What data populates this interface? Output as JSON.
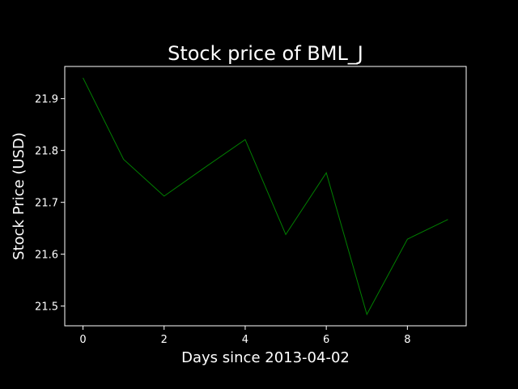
{
  "chart_data": {
    "type": "line",
    "title": "Stock price of BML_J",
    "xlabel": "Days since 2013-04-02",
    "ylabel": "Stock Price (USD)",
    "x": [
      0,
      1,
      2,
      3,
      4,
      5,
      6,
      7,
      8,
      9
    ],
    "series": [
      {
        "values": [
          21.94,
          21.783,
          21.712,
          21.767,
          21.821,
          21.638,
          21.757,
          21.484,
          21.629,
          21.667
        ]
      }
    ],
    "xlim": [
      -0.45,
      9.45
    ],
    "ylim": [
      21.462,
      21.962
    ],
    "xticks": [
      0,
      2,
      4,
      6,
      8
    ],
    "xtick_labels": [
      "0",
      "2",
      "4",
      "6",
      "8"
    ],
    "yticks": [
      21.5,
      21.6,
      21.7,
      21.8,
      21.9
    ],
    "ytick_labels": [
      "21.5",
      "21.6",
      "21.7",
      "21.8",
      "21.9"
    ],
    "grid": false,
    "colors": {
      "background": "#000000",
      "axes": "#ffffff",
      "line": "#008000"
    }
  }
}
